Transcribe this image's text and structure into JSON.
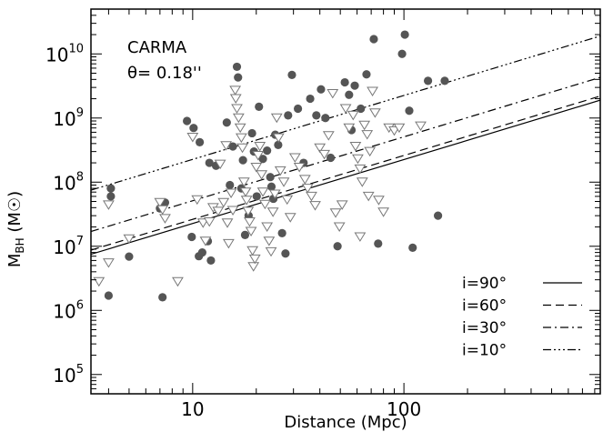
{
  "chart_data": {
    "type": "scatter",
    "title": "",
    "xlabel": "Distance (Mpc)",
    "ylabel": "M_BH (M_sun)",
    "xscale": "log",
    "yscale": "log",
    "xlim": [
      3.3,
      850
    ],
    "ylim": [
      50000,
      50000000000
    ],
    "x_tick_labels": [
      {
        "value": 10,
        "label": "10"
      },
      {
        "value": 100,
        "label": "100"
      }
    ],
    "y_tick_labels": [
      {
        "exp": 5,
        "label": "10",
        "sup": "5"
      },
      {
        "exp": 6,
        "label": "10",
        "sup": "6"
      },
      {
        "exp": 7,
        "label": "10",
        "sup": "7"
      },
      {
        "exp": 8,
        "label": "10",
        "sup": "8"
      },
      {
        "exp": 9,
        "label": "10",
        "sup": "9"
      },
      {
        "exp": 10,
        "label": "10",
        "sup": "10"
      }
    ],
    "annotations": [
      {
        "text": "CARMA"
      },
      {
        "text": "θ= 0.18''"
      }
    ],
    "legend_position": "bottom-right",
    "lines": [
      {
        "label": "i=90°",
        "dash": "solid",
        "points": [
          [
            3.3,
            7500000.0
          ],
          [
            850,
            1900000000.0
          ]
        ]
      },
      {
        "label": "i=60°",
        "dash": "dashed",
        "points": [
          [
            3.3,
            8700000.0
          ],
          [
            850,
            2200000000.0
          ]
        ]
      },
      {
        "label": "i=30°",
        "dash": "dashdot",
        "points": [
          [
            3.3,
            17000000.0
          ],
          [
            850,
            4300000000.0
          ]
        ]
      },
      {
        "label": "i=10°",
        "dash": "dashdotdotdot",
        "points": [
          [
            3.3,
            75000000.0
          ],
          [
            850,
            19000000000.0
          ]
        ]
      }
    ],
    "series": [
      {
        "marker": "filled-circle",
        "color": "#555555",
        "points": [
          [
            4.1,
            80000000.0
          ],
          [
            4.1,
            60000000.0
          ],
          [
            4.0,
            1700000.0
          ],
          [
            5.0,
            6900000.0
          ],
          [
            7.0,
            39000000.0
          ],
          [
            7.4,
            48000000.0
          ],
          [
            7.2,
            1600000.0
          ],
          [
            9.4,
            900000000.0
          ],
          [
            10.1,
            700000000.0
          ],
          [
            10.8,
            420000000.0
          ],
          [
            9.9,
            14000000.0
          ],
          [
            10.7,
            7000000.0
          ],
          [
            11.1,
            8000000.0
          ],
          [
            11.8,
            12000000.0
          ],
          [
            12.2,
            6000000.0
          ],
          [
            12.0,
            200000000.0
          ],
          [
            12.9,
            180000000.0
          ],
          [
            14.5,
            850000000.0
          ],
          [
            15.0,
            90000000.0
          ],
          [
            15.5,
            360000000.0
          ],
          [
            16.2,
            6300000000.0
          ],
          [
            16.4,
            4300000000.0
          ],
          [
            17.3,
            220000000.0
          ],
          [
            17.0,
            80000000.0
          ],
          [
            17.7,
            15000000.0
          ],
          [
            18.4,
            30000000.0
          ],
          [
            19.1,
            580000000.0
          ],
          [
            19.5,
            300000000.0
          ],
          [
            20.1,
            60000000.0
          ],
          [
            20.6,
            1500000000.0
          ],
          [
            21.5,
            230000000.0
          ],
          [
            22.5,
            310000000.0
          ],
          [
            23.3,
            120000000.0
          ],
          [
            23.6,
            85000000.0
          ],
          [
            24.1,
            55000000.0
          ],
          [
            24.6,
            550000000.0
          ],
          [
            25.4,
            380000000.0
          ],
          [
            26.5,
            16000000.0
          ],
          [
            27.5,
            7700000.0
          ],
          [
            28.3,
            1100000000.0
          ],
          [
            29.5,
            4700000000.0
          ],
          [
            31.5,
            1400000000.0
          ],
          [
            33.5,
            200000000.0
          ],
          [
            36.0,
            2000000000.0
          ],
          [
            38.5,
            1100000000.0
          ],
          [
            40.5,
            2800000000.0
          ],
          [
            42.5,
            1000000000.0
          ],
          [
            45.0,
            240000000.0
          ],
          [
            48.5,
            10000000.0
          ],
          [
            52.5,
            3600000000.0
          ],
          [
            55.0,
            2300000000.0
          ],
          [
            56.5,
            650000000.0
          ],
          [
            58.5,
            3200000000.0
          ],
          [
            62.5,
            1400000000.0
          ],
          [
            66.5,
            4800000000.0
          ],
          [
            72.0,
            17000000000.0
          ],
          [
            75.5,
            11000000.0
          ],
          [
            98.0,
            10000000000.0
          ],
          [
            101.0,
            20000000000.0
          ],
          [
            106.0,
            1300000000.0
          ],
          [
            110.0,
            9500000.0
          ],
          [
            130.0,
            3800000000.0
          ],
          [
            145.0,
            30000000.0
          ],
          [
            156.0,
            3800000000.0
          ]
        ]
      },
      {
        "marker": "open-triangle-down",
        "color": "#777777",
        "points": [
          [
            3.6,
            2800000.0
          ],
          [
            4.0,
            5500000.0
          ],
          [
            4.0,
            44000000.0
          ],
          [
            5.0,
            13000000.0
          ],
          [
            7.0,
            48000000.0
          ],
          [
            7.2,
            37000000.0
          ],
          [
            7.4,
            27000000.0
          ],
          [
            8.5,
            2800000.0
          ],
          [
            10.0,
            500000000.0
          ],
          [
            10.5,
            53000000.0
          ],
          [
            11.2,
            23000000.0
          ],
          [
            11.5,
            12000000.0
          ],
          [
            12.0,
            24000000.0
          ],
          [
            12.5,
            40000000.0
          ],
          [
            13.2,
            35000000.0
          ],
          [
            13.5,
            190000000.0
          ],
          [
            14.0,
            48000000.0
          ],
          [
            14.4,
            370000000.0
          ],
          [
            14.6,
            23000000.0
          ],
          [
            14.8,
            11000000.0
          ],
          [
            15.2,
            67000000.0
          ],
          [
            15.5,
            36000000.0
          ],
          [
            15.9,
            2700000000.0
          ],
          [
            16.0,
            2000000000.0
          ],
          [
            16.2,
            1400000000.0
          ],
          [
            16.5,
            1000000000.0
          ],
          [
            16.8,
            700000000.0
          ],
          [
            17.0,
            490000000.0
          ],
          [
            17.2,
            340000000.0
          ],
          [
            17.5,
            100000000.0
          ],
          [
            17.8,
            70000000.0
          ],
          [
            18.0,
            52000000.0
          ],
          [
            18.3,
            35000000.0
          ],
          [
            18.6,
            24000000.0
          ],
          [
            18.9,
            17000000.0
          ],
          [
            19.2,
            8500000.0
          ],
          [
            19.4,
            4800000.0
          ],
          [
            19.7,
            6300000.0
          ],
          [
            20.0,
            170000000.0
          ],
          [
            20.4,
            260000000.0
          ],
          [
            20.8,
            360000000.0
          ],
          [
            21.2,
            130000000.0
          ],
          [
            21.5,
            70000000.0
          ],
          [
            22.0,
            45000000.0
          ],
          [
            22.5,
            20000000.0
          ],
          [
            23.0,
            12000000.0
          ],
          [
            23.5,
            8200000.0
          ],
          [
            24.0,
            34000000.0
          ],
          [
            24.5,
            65000000.0
          ],
          [
            25.0,
            1000000000.0
          ],
          [
            25.5,
            490000000.0
          ],
          [
            26.0,
            150000000.0
          ],
          [
            27.0,
            100000000.0
          ],
          [
            28.0,
            53000000.0
          ],
          [
            29.0,
            28000000.0
          ],
          [
            30.5,
            240000000.0
          ],
          [
            32.0,
            170000000.0
          ],
          [
            34.0,
            110000000.0
          ],
          [
            35.0,
            80000000.0
          ],
          [
            36.5,
            60000000.0
          ],
          [
            38.0,
            43000000.0
          ],
          [
            40.0,
            340000000.0
          ],
          [
            42.0,
            270000000.0
          ],
          [
            44.0,
            530000000.0
          ],
          [
            46.0,
            2400000000.0
          ],
          [
            47.5,
            33000000.0
          ],
          [
            49.5,
            20000000.0
          ],
          [
            51.0,
            44000000.0
          ],
          [
            53.0,
            1400000000.0
          ],
          [
            55.0,
            700000000.0
          ],
          [
            57.5,
            1100000000.0
          ],
          [
            59.0,
            360000000.0
          ],
          [
            60.5,
            230000000.0
          ],
          [
            62.0,
            160000000.0
          ],
          [
            63.5,
            100000000.0
          ],
          [
            65.0,
            770000000.0
          ],
          [
            67.0,
            550000000.0
          ],
          [
            69.0,
            300000000.0
          ],
          [
            71.0,
            2600000000.0
          ],
          [
            73.0,
            1200000000.0
          ],
          [
            76.0,
            52000000.0
          ],
          [
            80.0,
            34000000.0
          ],
          [
            85.0,
            700000000.0
          ],
          [
            90.0,
            630000000.0
          ],
          [
            95.0,
            700000000.0
          ],
          [
            62.0,
            14000000.0
          ],
          [
            68.0,
            60000000.0
          ],
          [
            120.0,
            750000000.0
          ]
        ]
      }
    ]
  }
}
